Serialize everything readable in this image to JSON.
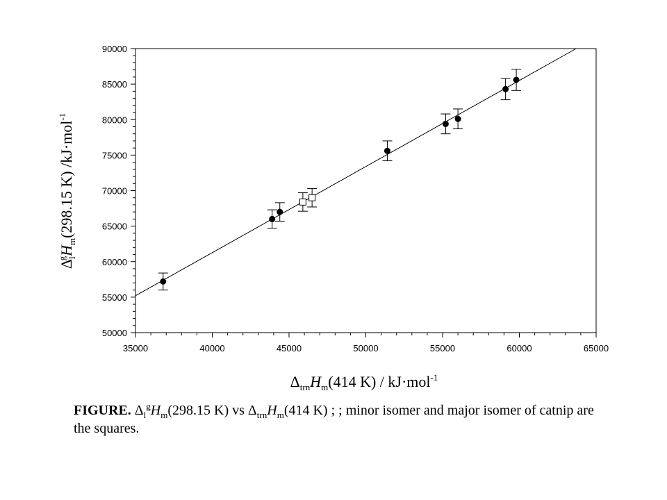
{
  "chart_data": {
    "type": "scatter",
    "xlabel": {
      "delta": "Δ",
      "sub": "trn",
      "symbol": "H",
      "sub2": "m",
      "rest": "(414 K) / kJ·mol",
      "sup": "-1"
    },
    "ylabel": {
      "delta": "Δ",
      "sub": "l",
      "sup": "g",
      "symbol": "H",
      "sub2": "m",
      "rest": "(298.15 K) /kJ·mol",
      "sup2": "-1"
    },
    "xlim": [
      35000,
      65000
    ],
    "ylim": [
      50000,
      90000
    ],
    "xticks": [
      "35000",
      "40000",
      "45000",
      "50000",
      "55000",
      "60000",
      "65000"
    ],
    "yticks": [
      "50000",
      "55000",
      "60000",
      "65000",
      "70000",
      "75000",
      "80000",
      "85000",
      "90000"
    ],
    "grid": false,
    "series": [
      {
        "marker": "filled-circle",
        "points": [
          {
            "x": 36800,
            "y": 57200,
            "err": 1200
          },
          {
            "x": 43900,
            "y": 66000,
            "err": 1300
          },
          {
            "x": 44400,
            "y": 67000,
            "err": 1300
          },
          {
            "x": 51400,
            "y": 75600,
            "err": 1400
          },
          {
            "x": 55200,
            "y": 79400,
            "err": 1400
          },
          {
            "x": 56000,
            "y": 80100,
            "err": 1400
          },
          {
            "x": 59100,
            "y": 84300,
            "err": 1500
          },
          {
            "x": 59800,
            "y": 85600,
            "err": 1500
          }
        ]
      },
      {
        "marker": "open-square",
        "points": [
          {
            "x": 45900,
            "y": 68400,
            "err": 1300
          },
          {
            "x": 46500,
            "y": 69000,
            "err": 1300
          }
        ]
      }
    ],
    "fit_line": {
      "x": [
        35000,
        63700
      ],
      "y": [
        55200,
        90000
      ]
    }
  },
  "caption": {
    "label": "FIGURE.",
    "d1": "Δ",
    "s1": "l",
    "p1": "g",
    "h1": "H",
    "m1": "m",
    "t1": "(298.15 K) vs ",
    "d2": "Δ",
    "s2": "trn",
    "h2": "H",
    "m2": "m",
    "t2": "(414 K) ; ; minor isomer and major isomer of catnip are the squares."
  }
}
